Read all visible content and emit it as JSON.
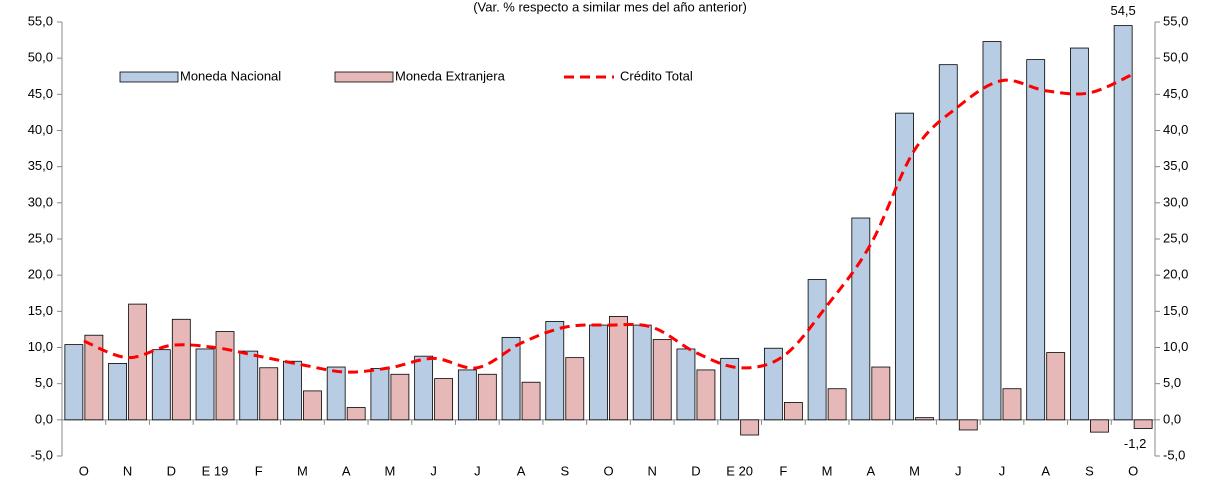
{
  "chart_data": {
    "type": "bar",
    "subtitle": "(Var. % respecto a similar mes del año anterior)",
    "categories": [
      "O",
      "N",
      "D",
      "E 19",
      "F",
      "M",
      "A",
      "M",
      "J",
      "J",
      "A",
      "S",
      "O",
      "N",
      "D",
      "E 20",
      "F",
      "M",
      "A",
      "M",
      "J",
      "J",
      "A",
      "S",
      "O"
    ],
    "series": [
      {
        "name": "Moneda Nacional",
        "type": "bar",
        "color": "#b8cce4",
        "values": [
          10.4,
          7.8,
          9.7,
          9.8,
          9.5,
          8.1,
          7.3,
          7.1,
          8.8,
          6.9,
          11.4,
          13.6,
          13.1,
          13.1,
          9.8,
          8.5,
          9.9,
          19.4,
          27.9,
          42.4,
          49.1,
          52.3,
          49.8,
          51.4,
          54.5
        ],
        "value_labels": [
          null,
          null,
          null,
          null,
          null,
          null,
          null,
          null,
          null,
          null,
          null,
          null,
          null,
          null,
          null,
          null,
          null,
          null,
          null,
          null,
          null,
          null,
          null,
          null,
          "54,5"
        ]
      },
      {
        "name": "Moneda Extranjera",
        "type": "bar",
        "color": "#e6b9b8",
        "values": [
          11.7,
          16.0,
          13.9,
          12.2,
          7.2,
          4.0,
          1.7,
          6.3,
          5.7,
          6.3,
          5.2,
          8.6,
          14.3,
          11.1,
          6.9,
          -2.1,
          2.4,
          4.3,
          7.3,
          0.3,
          -1.4,
          4.3,
          9.3,
          -1.7,
          -1.2
        ],
        "value_labels": [
          null,
          null,
          null,
          null,
          null,
          null,
          null,
          null,
          null,
          null,
          null,
          null,
          null,
          null,
          null,
          null,
          null,
          null,
          null,
          null,
          null,
          null,
          null,
          null,
          "-1,2"
        ]
      },
      {
        "name": "Crédito Total",
        "type": "line",
        "color": "#ff0000",
        "values": [
          10.9,
          8.6,
          10.3,
          10.0,
          8.8,
          7.6,
          6.6,
          7.2,
          8.5,
          7.2,
          10.6,
          12.8,
          13.1,
          12.8,
          9.3,
          7.2,
          8.8,
          15.8,
          24.3,
          37.3,
          43.3,
          46.9,
          45.5,
          45.2,
          47.8
        ]
      }
    ],
    "ylim": [
      -5,
      55
    ],
    "yticks": [
      {
        "value": -5,
        "label": "-5,0"
      },
      {
        "value": 0,
        "label": "0,0"
      },
      {
        "value": 5,
        "label": "5,0"
      },
      {
        "value": 10,
        "label": "10,0"
      },
      {
        "value": 15,
        "label": "15,0"
      },
      {
        "value": 20,
        "label": "20,0"
      },
      {
        "value": 25,
        "label": "25,0"
      },
      {
        "value": 30,
        "label": "30,0"
      },
      {
        "value": 35,
        "label": "35,0"
      },
      {
        "value": 40,
        "label": "40,0"
      },
      {
        "value": 45,
        "label": "45,0"
      },
      {
        "value": 50,
        "label": "50,0"
      },
      {
        "value": 55,
        "label": "55,0"
      }
    ],
    "y2lim": [
      -5,
      55
    ],
    "y2ticks": [
      {
        "value": -5,
        "label": "-5,0"
      },
      {
        "value": 0,
        "label": "0,0"
      },
      {
        "value": 5,
        "label": "5,0"
      },
      {
        "value": 10,
        "label": "10,0"
      },
      {
        "value": 15,
        "label": "15,0"
      },
      {
        "value": 20,
        "label": "20,0"
      },
      {
        "value": 25,
        "label": "25,0"
      },
      {
        "value": 30,
        "label": "30,0"
      },
      {
        "value": 35,
        "label": "35,0"
      },
      {
        "value": 40,
        "label": "40,0"
      },
      {
        "value": 45,
        "label": "45,0"
      },
      {
        "value": 50,
        "label": "50,0"
      },
      {
        "value": 55,
        "label": "55,0"
      }
    ],
    "legend": "top-left"
  }
}
